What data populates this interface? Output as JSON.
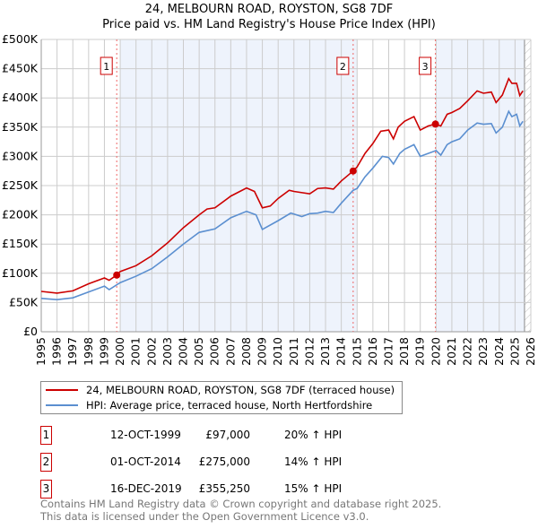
{
  "chart_data": {
    "type": "line",
    "title": "24, MELBOURN ROAD, ROYSTON, SG8 7DF",
    "subtitle": "Price paid vs. HM Land Registry's House Price Index (HPI)",
    "xlim": [
      1995,
      2026
    ],
    "ylim": [
      0,
      500000
    ],
    "x_ticks": [
      "1995",
      "1996",
      "1997",
      "1998",
      "1999",
      "2000",
      "2001",
      "2002",
      "2003",
      "2004",
      "2005",
      "2006",
      "2007",
      "2008",
      "2009",
      "2010",
      "2011",
      "2012",
      "2013",
      "2014",
      "2015",
      "2016",
      "2017",
      "2018",
      "2019",
      "2020",
      "2021",
      "2022",
      "2023",
      "2024",
      "2025",
      "2026"
    ],
    "y_ticks": [
      {
        "v": 0,
        "l": "£0"
      },
      {
        "v": 50000,
        "l": "£50K"
      },
      {
        "v": 100000,
        "l": "£100K"
      },
      {
        "v": 150000,
        "l": "£150K"
      },
      {
        "v": 200000,
        "l": "£200K"
      },
      {
        "v": 250000,
        "l": "£250K"
      },
      {
        "v": 300000,
        "l": "£300K"
      },
      {
        "v": 350000,
        "l": "£350K"
      },
      {
        "v": 400000,
        "l": "£400K"
      },
      {
        "v": 450000,
        "l": "£450K"
      },
      {
        "v": 500000,
        "l": "£500K"
      }
    ],
    "grid": true,
    "series": [
      {
        "name": "24, MELBOURN ROAD, ROYSTON, SG8 7DF (terraced house)",
        "color": "#cc0000",
        "x": [
          1995,
          1996,
          1997,
          1998,
          1999,
          1999.3,
          1999.78,
          2000,
          2001,
          2002,
          2003,
          2004,
          2005,
          2005.5,
          2006,
          2007,
          2008,
          2008.5,
          2009,
          2009.5,
          2010,
          2010.7,
          2011,
          2012,
          2012.5,
          2013,
          2013.5,
          2014,
          2014.75,
          2015,
          2015.5,
          2016,
          2016.5,
          2017,
          2017.3,
          2017.6,
          2018,
          2018.6,
          2019,
          2019.5,
          2019.96,
          2020.3,
          2020.7,
          2021,
          2021.5,
          2022,
          2022.6,
          2023,
          2023.5,
          2023.8,
          2024.2,
          2024.6,
          2024.8,
          2025.1,
          2025.3,
          2025.5
        ],
        "y": [
          69000,
          66000,
          70000,
          82000,
          92000,
          88000,
          97000,
          103000,
          113000,
          130000,
          152000,
          178000,
          200000,
          210000,
          212000,
          232000,
          246000,
          240000,
          212000,
          215000,
          228000,
          242000,
          240000,
          236000,
          245000,
          246000,
          244000,
          258000,
          275000,
          282000,
          305000,
          322000,
          343000,
          345000,
          330000,
          350000,
          360000,
          368000,
          345000,
          352000,
          355250,
          352000,
          372000,
          375000,
          382000,
          395000,
          412000,
          408000,
          410000,
          392000,
          405000,
          433000,
          425000,
          425000,
          404000,
          412000
        ]
      },
      {
        "name": "HPI: Average price, terraced house, North Hertfordshire",
        "color": "#5b8fd0",
        "x": [
          1995,
          1996,
          1997,
          1998,
          1999,
          1999.3,
          2000,
          2001,
          2002,
          2003,
          2004,
          2005,
          2006,
          2007,
          2008,
          2008.6,
          2009,
          2010,
          2010.8,
          2011.5,
          2012,
          2012.5,
          2013,
          2013.5,
          2014,
          2014.75,
          2015,
          2015.5,
          2016,
          2016.6,
          2017,
          2017.3,
          2017.7,
          2018,
          2018.6,
          2019,
          2019.5,
          2020,
          2020.3,
          2020.7,
          2021,
          2021.5,
          2022,
          2022.6,
          2023,
          2023.5,
          2023.8,
          2024.2,
          2024.6,
          2024.8,
          2025.1,
          2025.3,
          2025.5
        ],
        "y": [
          57000,
          55000,
          58000,
          68000,
          78000,
          72000,
          84000,
          95000,
          108000,
          128000,
          150000,
          170000,
          176000,
          195000,
          206000,
          200000,
          175000,
          190000,
          203000,
          197000,
          202000,
          203000,
          206000,
          204000,
          220000,
          242000,
          245000,
          265000,
          280000,
          300000,
          298000,
          287000,
          305000,
          312000,
          320000,
          300000,
          305000,
          310000,
          302000,
          320000,
          325000,
          330000,
          345000,
          357000,
          355000,
          356000,
          340000,
          350000,
          377000,
          368000,
          372000,
          352000,
          360000
        ]
      }
    ],
    "sales": [
      {
        "id": "1",
        "x": 1999.78,
        "price": 97000,
        "date": "12-OCT-1999",
        "price_label": "£97,000",
        "hpi": "20% ↑ HPI"
      },
      {
        "id": "2",
        "x": 2014.75,
        "price": 275000,
        "date": "01-OCT-2014",
        "price_label": "£275,000",
        "hpi": "14% ↑ HPI"
      },
      {
        "id": "3",
        "x": 2019.96,
        "price": 355250,
        "date": "16-DEC-2019",
        "price_label": "£355,250",
        "hpi": "15% ↑ HPI"
      }
    ],
    "shaded_ranges": [
      [
        2000,
        2015
      ],
      [
        2020,
        2025.6
      ]
    ],
    "hatched_from": 2025.6,
    "legend_placement": "below"
  },
  "footer": [
    "Contains HM Land Registry data © Crown copyright and database right 2025.",
    "This data is licensed under the Open Government Licence v3.0."
  ]
}
